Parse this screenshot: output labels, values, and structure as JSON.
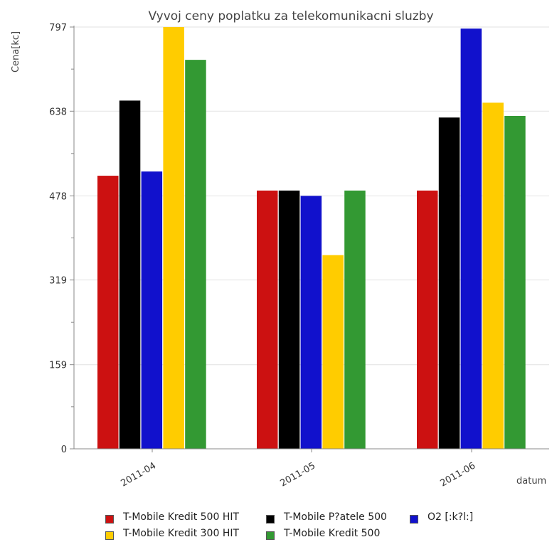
{
  "chart_data": {
    "type": "bar",
    "title": "Vyvoj ceny poplatku za telekomunikacni sluzby",
    "xlabel": "datum",
    "ylabel": "Cena[kc]",
    "categories": [
      "2011-04",
      "2011-05",
      "2011-06"
    ],
    "ylim": [
      0,
      797
    ],
    "yticks": [
      0,
      159,
      319,
      478,
      638,
      797
    ],
    "grid": true,
    "legend_position": "bottom",
    "series": [
      {
        "name": "T-Mobile Kredit 500 HIT",
        "color": "#cc1111",
        "values": [
          516,
          488,
          488
        ]
      },
      {
        "name": "T-Mobile Kredit 300 HIT",
        "color": "#ffcc00",
        "values": [
          797,
          366,
          654
        ]
      },
      {
        "name": "T-Mobile P?atele 500",
        "color": "#000000",
        "values": [
          658,
          488,
          626
        ]
      },
      {
        "name": "T-Mobile Kredit 500",
        "color": "#339933",
        "values": [
          735,
          488,
          629
        ]
      },
      {
        "name": "O2 [:k?l:]",
        "color": "#1111cc",
        "values": [
          524,
          478,
          794
        ]
      }
    ],
    "bar_order": [
      "T-Mobile Kredit 500 HIT",
      "T-Mobile P?atele 500",
      "O2 [:k?l:]",
      "T-Mobile Kredit 300 HIT",
      "T-Mobile Kredit 500"
    ],
    "legend_rows": [
      [
        "T-Mobile Kredit 500 HIT",
        "T-Mobile P?atele 500",
        "O2 [:k?l:]"
      ],
      [
        "T-Mobile Kredit 300 HIT",
        "T-Mobile Kredit 500"
      ]
    ]
  }
}
